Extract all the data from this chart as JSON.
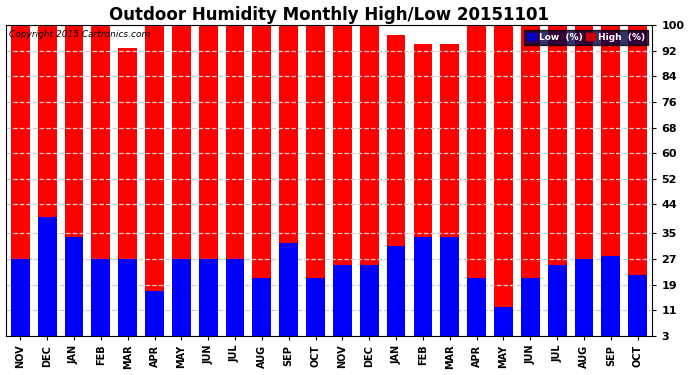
{
  "title": "Outdoor Humidity Monthly High/Low 20151101",
  "copyright_text": "Copyright 2015 Cartronics.com",
  "legend_low": "Low  (%)",
  "legend_high": "High  (%)",
  "months": [
    "NOV",
    "DEC",
    "JAN",
    "FEB",
    "MAR",
    "APR",
    "MAY",
    "JUN",
    "JUL",
    "AUG",
    "SEP",
    "OCT",
    "NOV",
    "DEC",
    "JAN",
    "FEB",
    "MAR",
    "APR",
    "MAY",
    "JUN",
    "JUL",
    "AUG",
    "SEP",
    "OCT"
  ],
  "high_values": [
    100,
    100,
    100,
    100,
    93,
    100,
    100,
    100,
    100,
    100,
    100,
    100,
    100,
    100,
    97,
    94,
    94,
    100,
    100,
    100,
    100,
    100,
    100,
    100
  ],
  "low_values": [
    27,
    40,
    34,
    27,
    27,
    17,
    27,
    27,
    27,
    21,
    32,
    21,
    25,
    25,
    31,
    34,
    34,
    21,
    12,
    21,
    25,
    27,
    28,
    22
  ],
  "high_color": "#ff0000",
  "low_color": "#0000ff",
  "bg_color": "#ffffff",
  "plot_bg_color": "#ffffff",
  "yticks": [
    3,
    11,
    19,
    27,
    35,
    44,
    52,
    60,
    68,
    76,
    84,
    92,
    100
  ],
  "ylim": [
    3,
    100
  ],
  "grid_color": "#cccccc",
  "title_fontsize": 12,
  "bar_width": 0.7
}
